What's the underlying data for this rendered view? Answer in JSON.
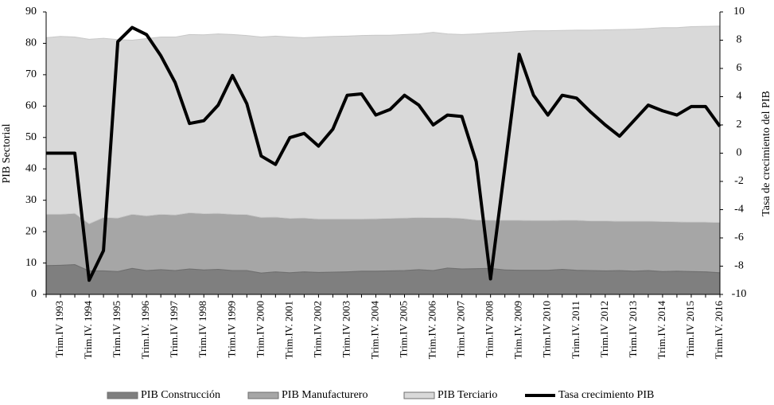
{
  "chart_data": {
    "type": "stacked_area_line",
    "ylabel": "PIB Sectorial",
    "y2label": "Tasa de crecimiento del PIB",
    "categories": [
      null,
      "Trim.IV 1993",
      null,
      "Trim.IV. 1994",
      null,
      "Trim.IV 1995",
      null,
      "Trim.IV. 1996",
      null,
      "Trim.IV 1997",
      null,
      "Trim.IV 1998",
      null,
      "Trim.IV 1999",
      null,
      "Trim.IV 2000",
      null,
      "Trim.IV. 2001",
      null,
      "Trim.IV 2002",
      null,
      "Trim.IV 2003",
      null,
      "Trim.IV. 2004",
      null,
      "Trim.IV 2005",
      null,
      "Trim.IV. 2006",
      null,
      "Trim.IV 2007",
      null,
      "Trim.IV 2008",
      null,
      "Trim.IV. 2009",
      null,
      "Trim.IV 2010",
      null,
      "Trim.IV. 2011",
      null,
      "Trim.IV 2012",
      null,
      "Trim.IV 2013",
      null,
      "Trim.IV. 2014",
      null,
      "Trim.IV 2015",
      null,
      "Trim.IV. 2016"
    ],
    "series": [
      {
        "name": "PIB Construcción",
        "color": "#7f7f7f",
        "values": [
          9.2,
          9.3,
          9.5,
          7.5,
          7.5,
          7.3,
          8.3,
          7.6,
          7.9,
          7.6,
          8.1,
          7.8,
          8.0,
          7.6,
          7.6,
          6.8,
          7.2,
          6.9,
          7.2,
          7.0,
          7.1,
          7.2,
          7.4,
          7.4,
          7.5,
          7.6,
          7.9,
          7.6,
          8.4,
          8.1,
          8.2,
          8.3,
          7.8,
          7.7,
          7.7,
          7.7,
          8.0,
          7.7,
          7.6,
          7.5,
          7.6,
          7.4,
          7.6,
          7.3,
          7.4,
          7.3,
          7.2,
          6.9
        ]
      },
      {
        "name": "PIB Manufacturero",
        "color": "#a6a6a6",
        "values": [
          16.3,
          16.2,
          16.3,
          15.0,
          17.0,
          17.0,
          17.2,
          17.4,
          17.6,
          17.7,
          17.9,
          17.9,
          17.8,
          17.9,
          17.8,
          17.7,
          17.4,
          17.3,
          17.1,
          17.0,
          16.9,
          16.8,
          16.6,
          16.7,
          16.7,
          16.7,
          16.6,
          16.8,
          16.0,
          16.1,
          15.5,
          15.3,
          15.8,
          15.9,
          15.8,
          15.8,
          15.6,
          15.9,
          15.8,
          15.9,
          15.7,
          15.9,
          15.7,
          15.9,
          15.7,
          15.7,
          15.8,
          16.0
        ]
      },
      {
        "name": "PIB Terciario",
        "color": "#d9d9d9",
        "values": [
          56.3,
          56.7,
          56.2,
          58.8,
          57.1,
          56.9,
          55.5,
          56.5,
          56.5,
          56.7,
          56.8,
          57.0,
          57.2,
          57.3,
          57.1,
          57.5,
          57.7,
          57.8,
          57.5,
          58.0,
          58.2,
          58.3,
          58.5,
          58.5,
          58.4,
          58.5,
          58.5,
          59.1,
          58.6,
          58.6,
          59.3,
          59.7,
          59.9,
          60.2,
          60.5,
          60.5,
          60.5,
          60.6,
          60.8,
          60.9,
          61.1,
          61.2,
          61.4,
          61.8,
          61.9,
          62.3,
          62.4,
          62.6
        ]
      },
      {
        "name": "Tasa crecimiento PIB",
        "color": "#000000",
        "axis": "y2",
        "values": [
          0,
          0,
          0,
          -9,
          -6.9,
          7.9,
          8.9,
          8.4,
          6.9,
          5.0,
          2.1,
          2.3,
          3.4,
          5.5,
          3.5,
          -0.2,
          -0.8,
          1.1,
          1.4,
          0.5,
          1.7,
          4.1,
          4.2,
          2.7,
          3.1,
          4.1,
          3.4,
          2.0,
          2.7,
          2.6,
          -0.6,
          -8.9,
          -1.0,
          7.0,
          4.1,
          2.7,
          4.1,
          3.9,
          2.9,
          2.0,
          1.2,
          2.3,
          3.4,
          3.0,
          2.7,
          3.3,
          3.3,
          1.9
        ]
      }
    ],
    "ylim": [
      0,
      90
    ],
    "yticks": [
      0,
      10,
      20,
      30,
      40,
      50,
      60,
      70,
      80,
      90
    ],
    "y2lim": [
      -10,
      10
    ],
    "y2ticks": [
      -10,
      -8,
      -6,
      -4,
      -2,
      0,
      2,
      4,
      6,
      8,
      10
    ],
    "legend": "bottom"
  }
}
